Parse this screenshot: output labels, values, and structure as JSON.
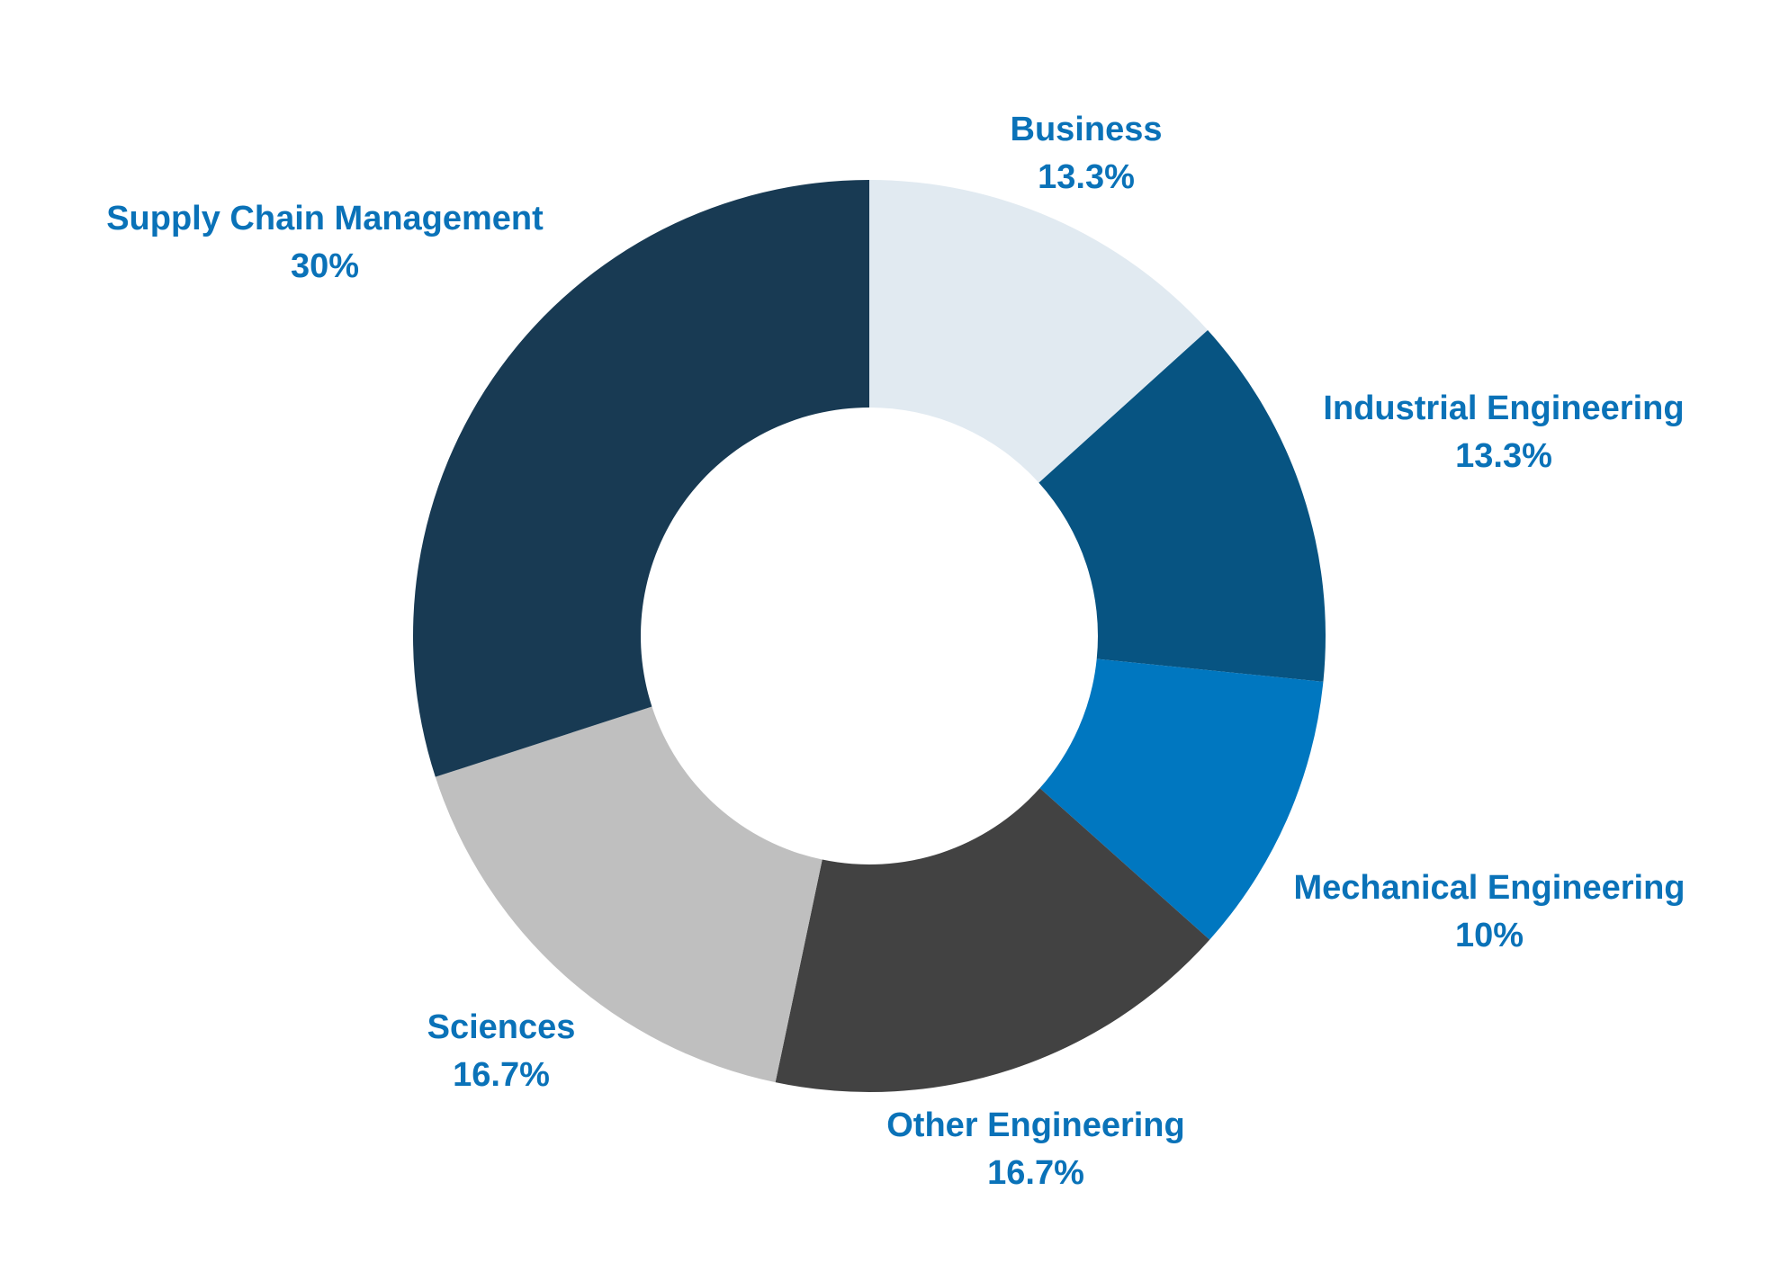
{
  "chart_data": {
    "type": "donut",
    "categories": [
      "Business",
      "Industrial Engineering",
      "Mechanical Engineering",
      "Other Engineering",
      "Sciences",
      "Supply Chain Management"
    ],
    "values": [
      13.3,
      13.3,
      10,
      16.7,
      16.7,
      30
    ],
    "value_labels": [
      "13.3%",
      "13.3%",
      "10%",
      "16.7%",
      "16.7%",
      "30%"
    ],
    "colors": [
      "#e1eaf1",
      "#075482",
      "#0077c0",
      "#424242",
      "#bfbfbf",
      "#183a53"
    ]
  }
}
